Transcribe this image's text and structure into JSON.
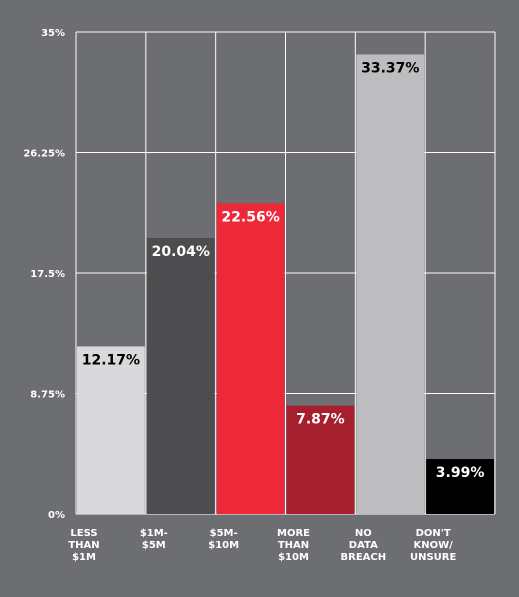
{
  "chart_data": {
    "type": "bar",
    "title": "",
    "xlabel": "",
    "ylabel": "",
    "ylim": [
      0,
      35
    ],
    "yticks": [
      {
        "value": 0,
        "label": "0%"
      },
      {
        "value": 8.75,
        "label": "8.75%"
      },
      {
        "value": 17.5,
        "label": "17.5%"
      },
      {
        "value": 26.25,
        "label": "26.25%"
      },
      {
        "value": 35,
        "label": "35%"
      }
    ],
    "grid": true,
    "legend": "none",
    "categories": [
      [
        "LESS",
        "THAN",
        "$1M"
      ],
      [
        "$1M-",
        "$5M"
      ],
      [
        "$5M-",
        "$10M"
      ],
      [
        "MORE",
        "THAN",
        "$10M"
      ],
      [
        "NO",
        "DATA",
        "BREACH"
      ],
      [
        "DON'T",
        "KNOW/",
        "UNSURE"
      ]
    ],
    "values": [
      12.17,
      20.04,
      22.56,
      7.87,
      33.37,
      3.99
    ],
    "value_labels": [
      "12.17%",
      "20.04%",
      "22.56%",
      "7.87%",
      "33.37%",
      "3.99%"
    ],
    "colors": [
      "#d9d9db",
      "#4d4d4f",
      "#ed2839",
      "#a61f2e",
      "#bdbdbf",
      "#000000"
    ],
    "label_colors": [
      "#000000",
      "#ffffff",
      "#ffffff",
      "#ffffff",
      "#000000",
      "#ffffff"
    ],
    "background": "#6d6e71",
    "grid_color": "#ffffff"
  }
}
